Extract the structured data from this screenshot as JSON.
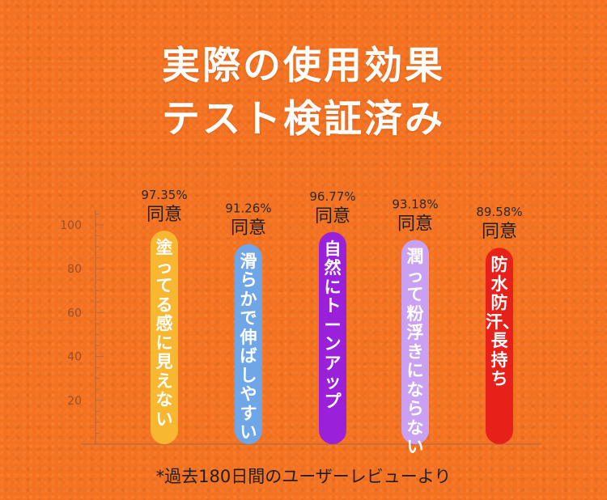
{
  "title": {
    "line1": "実際の使用効果",
    "line2": "テスト検証済み"
  },
  "footnote": "*過去180日間のユーザーレビューより",
  "chart_data": {
    "type": "bar",
    "ylim": [
      0,
      108
    ],
    "yticks": [
      20,
      40,
      60,
      80,
      100
    ],
    "grid": false,
    "categories": [
      "塗ってる感に見えない",
      "滑らかで伸ばしやすい",
      "自然にトーンアップ",
      "潤って粉浮きにならない",
      "防水防汗、長持ち"
    ],
    "values": [
      97.35,
      91.26,
      96.77,
      93.18,
      89.58
    ],
    "value_labels": [
      "97.35%",
      "91.26%",
      "96.77%",
      "93.18%",
      "89.58%"
    ],
    "agree_label": "同意",
    "colors": [
      "#F7B731",
      "#6FA6E8",
      "#9B20D9",
      "#C9A0F2",
      "#E7211A"
    ]
  }
}
